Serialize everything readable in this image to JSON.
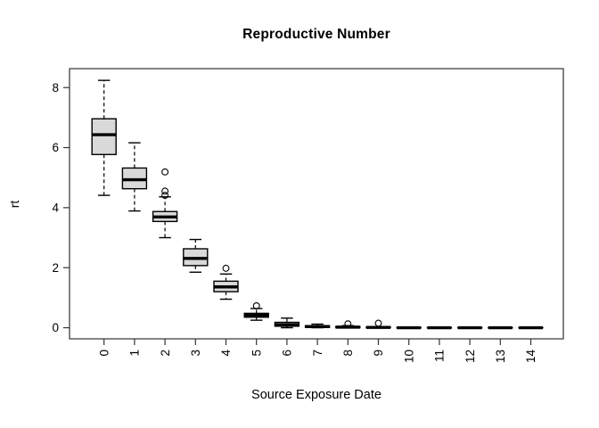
{
  "chart_data": {
    "type": "boxplot",
    "title": "Reproductive Number",
    "xlabel": "Source Exposure Date",
    "ylabel": "rt",
    "categories": [
      "0",
      "1",
      "2",
      "3",
      "4",
      "5",
      "6",
      "7",
      "8",
      "9",
      "10",
      "11",
      "12",
      "13",
      "14"
    ],
    "y_ticks": [
      0,
      2,
      4,
      6,
      8
    ],
    "ylim": [
      -0.37,
      8.63
    ],
    "grid": "off",
    "legend": "none",
    "background_color": "#ffffff",
    "box_fill_color": "#d9d9d9",
    "box_border_color": "#000000",
    "median_color": "#000000",
    "boxes": [
      {
        "category": "0",
        "whisker_low": 4.41,
        "q1": 5.77,
        "median": 6.43,
        "q3": 6.96,
        "whisker_high": 8.24,
        "outliers": []
      },
      {
        "category": "1",
        "whisker_low": 3.89,
        "q1": 4.63,
        "median": 4.93,
        "q3": 5.32,
        "whisker_high": 6.16,
        "outliers": []
      },
      {
        "category": "2",
        "whisker_low": 3.0,
        "q1": 3.54,
        "median": 3.69,
        "q3": 3.87,
        "whisker_high": 4.36,
        "outliers": [
          4.41,
          4.55,
          5.19
        ]
      },
      {
        "category": "3",
        "whisker_low": 1.85,
        "q1": 2.07,
        "median": 2.31,
        "q3": 2.63,
        "whisker_high": 2.94,
        "outliers": []
      },
      {
        "category": "4",
        "whisker_low": 0.95,
        "q1": 1.2,
        "median": 1.36,
        "q3": 1.55,
        "whisker_high": 1.79,
        "outliers": [
          1.98
        ]
      },
      {
        "category": "5",
        "whisker_low": 0.25,
        "q1": 0.35,
        "median": 0.42,
        "q3": 0.48,
        "whisker_high": 0.64,
        "outliers": [
          0.73
        ]
      },
      {
        "category": "6",
        "whisker_low": 0.0,
        "q1": 0.05,
        "median": 0.1,
        "q3": 0.18,
        "whisker_high": 0.32,
        "outliers": []
      },
      {
        "category": "7",
        "whisker_low": 0.0,
        "q1": 0.01,
        "median": 0.04,
        "q3": 0.07,
        "whisker_high": 0.12,
        "outliers": []
      },
      {
        "category": "8",
        "whisker_low": 0.0,
        "q1": 0.0,
        "median": 0.02,
        "q3": 0.04,
        "whisker_high": 0.07,
        "outliers": [
          0.13
        ]
      },
      {
        "category": "9",
        "whisker_low": 0.0,
        "q1": 0.0,
        "median": 0.01,
        "q3": 0.02,
        "whisker_high": 0.04,
        "outliers": [
          0.15
        ]
      },
      {
        "category": "10",
        "whisker_low": 0.0,
        "q1": 0.0,
        "median": 0.0,
        "q3": 0.0,
        "whisker_high": 0.0,
        "outliers": []
      },
      {
        "category": "11",
        "whisker_low": 0.0,
        "q1": 0.0,
        "median": 0.0,
        "q3": 0.0,
        "whisker_high": 0.0,
        "outliers": []
      },
      {
        "category": "12",
        "whisker_low": 0.0,
        "q1": 0.0,
        "median": 0.0,
        "q3": 0.0,
        "whisker_high": 0.0,
        "outliers": []
      },
      {
        "category": "13",
        "whisker_low": 0.0,
        "q1": 0.0,
        "median": 0.0,
        "q3": 0.0,
        "whisker_high": 0.0,
        "outliers": []
      },
      {
        "category": "14",
        "whisker_low": 0.0,
        "q1": 0.0,
        "median": 0.0,
        "q3": 0.0,
        "whisker_high": 0.0,
        "outliers": []
      }
    ]
  }
}
